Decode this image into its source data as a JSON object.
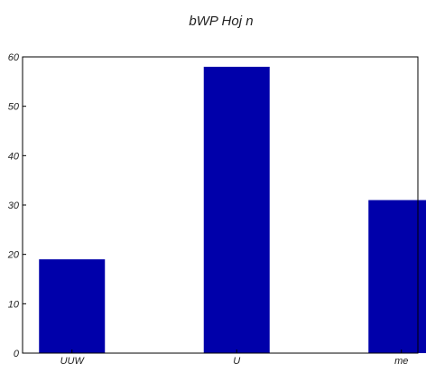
{
  "chart_data": {
    "type": "bar",
    "title": "bWP Hoj n",
    "xlabel": "",
    "ylabel": "",
    "categories": [
      "UUW",
      "U",
      "me"
    ],
    "values": [
      19,
      58,
      31
    ],
    "ylim": [
      0,
      60
    ],
    "yticks": [
      0,
      10,
      20,
      30,
      40,
      50,
      60
    ],
    "bar_color": "#0000aa",
    "grid": false,
    "legend": "none"
  }
}
